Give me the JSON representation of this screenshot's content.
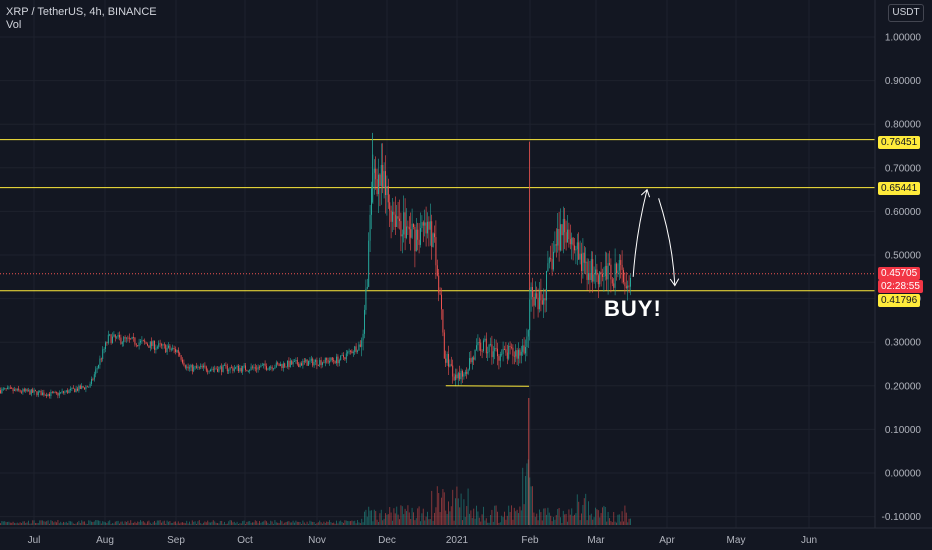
{
  "header": {
    "symbol": "XRP / TetherUS, 4h, BINANCE",
    "vol_label": "Vol",
    "currency": "USDT"
  },
  "annotation": {
    "buy_text": "BUY!"
  },
  "price_tags": {
    "level_high": "0.76451",
    "level_mid": "0.65441",
    "current": "0.45705",
    "timer": "02:28:55",
    "level_low": "0.41796"
  },
  "colors": {
    "background": "#131722",
    "up": "#26a69a",
    "down": "#ef5350",
    "level": "#ffeb3b",
    "grid": "#1e222d",
    "axis_text": "#b2b5be",
    "annotation": "#ffffff"
  },
  "chart_data": {
    "type": "candlestick",
    "symbol": "XRP / TetherUS",
    "interval": "4h",
    "exchange": "BINANCE",
    "y_ticks": [
      "1.00000",
      "0.90000",
      "0.80000",
      "0.70000",
      "0.60000",
      "0.50000",
      "0.40000",
      "0.30000",
      "0.20000",
      "0.10000",
      "0.00000",
      "-0.10000"
    ],
    "x_ticks": [
      "Jul",
      "Aug",
      "Sep",
      "Oct",
      "Nov",
      "Dec",
      "2021",
      "Feb",
      "Mar",
      "Apr",
      "May",
      "Jun"
    ],
    "ylim": [
      -0.12,
      1.05
    ],
    "horizontal_levels": [
      0.76451,
      0.65441,
      0.41796
    ],
    "current_price": 0.45705,
    "price_path": [
      {
        "t": "2020-06-20",
        "p": 0.19
      },
      {
        "t": "2020-07-10",
        "p": 0.18
      },
      {
        "t": "2020-07-25",
        "p": 0.2
      },
      {
        "t": "2020-08-02",
        "p": 0.31
      },
      {
        "t": "2020-08-15",
        "p": 0.3
      },
      {
        "t": "2020-09-01",
        "p": 0.28
      },
      {
        "t": "2020-09-05",
        "p": 0.24
      },
      {
        "t": "2020-10-01",
        "p": 0.24
      },
      {
        "t": "2020-10-20",
        "p": 0.25
      },
      {
        "t": "2020-11-10",
        "p": 0.26
      },
      {
        "t": "2020-11-20",
        "p": 0.3
      },
      {
        "t": "2020-11-24",
        "p": 0.65
      },
      {
        "t": "2020-11-25",
        "p": 0.7
      },
      {
        "t": "2020-12-01",
        "p": 0.62
      },
      {
        "t": "2020-12-10",
        "p": 0.55
      },
      {
        "t": "2020-12-21",
        "p": 0.55
      },
      {
        "t": "2020-12-25",
        "p": 0.28
      },
      {
        "t": "2020-12-30",
        "p": 0.21
      },
      {
        "t": "2021-01-10",
        "p": 0.29
      },
      {
        "t": "2021-01-20",
        "p": 0.27
      },
      {
        "t": "2021-01-29",
        "p": 0.28
      },
      {
        "t": "2021-02-01",
        "p": 0.42
      },
      {
        "t": "2021-02-05",
        "p": 0.38
      },
      {
        "t": "2021-02-10",
        "p": 0.5
      },
      {
        "t": "2021-02-15",
        "p": 0.58
      },
      {
        "t": "2021-02-23",
        "p": 0.47
      },
      {
        "t": "2021-03-05",
        "p": 0.46
      },
      {
        "t": "2021-03-15",
        "p": 0.457
      }
    ],
    "annotations": [
      {
        "type": "horizontal_line",
        "price": 0.76451
      },
      {
        "type": "horizontal_line",
        "price": 0.65441
      },
      {
        "type": "horizontal_line",
        "price": 0.41796
      },
      {
        "type": "trend_line",
        "from": {
          "t": "2020-12-26",
          "p": 0.2
        },
        "to": {
          "t": "2021-01-31",
          "p": 0.199
        }
      },
      {
        "type": "arrow",
        "from": {
          "t": "2021-03-17",
          "p": 0.45
        },
        "to": {
          "t": "2021-03-23",
          "p": 0.65
        }
      },
      {
        "type": "arrow",
        "from": {
          "t": "2021-03-28",
          "p": 0.63
        },
        "to": {
          "t": "2021-04-04",
          "p": 0.43
        }
      },
      {
        "type": "text",
        "text": "BUY!"
      }
    ]
  }
}
